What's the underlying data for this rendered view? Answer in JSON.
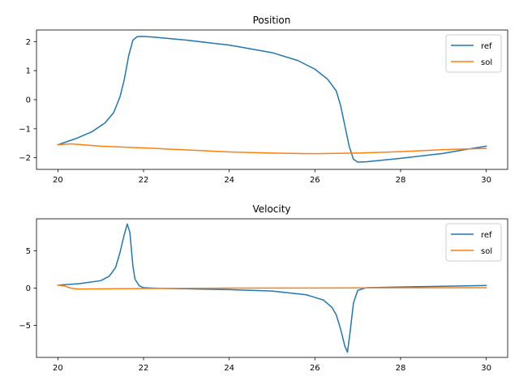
{
  "chart_data": [
    {
      "type": "line",
      "title": "Position",
      "xlabel": "",
      "ylabel": "",
      "xlim": [
        19.5,
        30.5
      ],
      "ylim": [
        -2.4,
        2.4
      ],
      "xticks": [
        20,
        22,
        24,
        26,
        28,
        30
      ],
      "yticks": [
        -2,
        -1,
        0,
        1,
        2
      ],
      "xtick_labels": [
        "20",
        "22",
        "24",
        "26",
        "28",
        "30"
      ],
      "ytick_labels": [
        "−2",
        "−1",
        "0",
        "1",
        "2"
      ],
      "legend": {
        "position": "top-right",
        "entries": [
          "ref",
          "sol"
        ]
      },
      "series": [
        {
          "name": "ref",
          "color": "#1f77b4",
          "x": [
            20,
            20.4,
            20.8,
            21.1,
            21.3,
            21.45,
            21.55,
            21.65,
            21.75,
            21.85,
            21.95,
            22.2,
            23,
            24,
            25,
            25.6,
            26,
            26.3,
            26.5,
            26.6,
            26.7,
            26.8,
            26.9,
            27.0,
            27.2,
            28,
            29,
            29.5,
            30
          ],
          "y": [
            -1.55,
            -1.35,
            -1.1,
            -0.8,
            -0.45,
            0.1,
            0.7,
            1.5,
            2.05,
            2.17,
            2.18,
            2.16,
            2.05,
            1.88,
            1.62,
            1.35,
            1.05,
            0.7,
            0.3,
            -0.2,
            -0.9,
            -1.6,
            -2.05,
            -2.15,
            -2.14,
            -2.02,
            -1.85,
            -1.72,
            -1.6
          ]
        },
        {
          "name": "sol",
          "color": "#ff7f0e",
          "x": [
            20,
            20.3,
            21,
            22,
            23,
            24,
            25,
            26,
            27,
            28,
            29,
            30
          ],
          "y": [
            -1.55,
            -1.52,
            -1.6,
            -1.66,
            -1.73,
            -1.8,
            -1.84,
            -1.86,
            -1.84,
            -1.79,
            -1.72,
            -1.68
          ]
        }
      ]
    },
    {
      "type": "line",
      "title": "Velocity",
      "xlabel": "",
      "ylabel": "",
      "xlim": [
        19.5,
        30.5
      ],
      "ylim": [
        -9.3,
        9.3
      ],
      "xticks": [
        20,
        22,
        24,
        26,
        28,
        30
      ],
      "yticks": [
        -5,
        0,
        5
      ],
      "xtick_labels": [
        "20",
        "22",
        "24",
        "26",
        "28",
        "30"
      ],
      "ytick_labels": [
        "−5",
        "0",
        "5"
      ],
      "legend": {
        "position": "top-right",
        "entries": [
          "ref",
          "sol"
        ]
      },
      "series": [
        {
          "name": "ref",
          "color": "#1f77b4",
          "x": [
            20,
            20.5,
            21,
            21.2,
            21.35,
            21.45,
            21.55,
            21.62,
            21.68,
            21.75,
            21.8,
            21.9,
            22.0,
            22.2,
            23,
            24,
            25,
            25.8,
            26.2,
            26.4,
            26.5,
            26.6,
            26.7,
            26.76,
            26.82,
            26.9,
            27.0,
            27.2,
            28,
            29,
            30
          ],
          "y": [
            0.4,
            0.6,
            1.0,
            1.6,
            2.8,
            4.8,
            7.2,
            8.6,
            7.5,
            3.0,
            1.2,
            0.3,
            0.05,
            0.0,
            -0.1,
            -0.2,
            -0.4,
            -0.9,
            -1.6,
            -2.6,
            -3.6,
            -5.5,
            -7.8,
            -8.6,
            -6.0,
            -2.0,
            -0.3,
            0.05,
            0.15,
            0.25,
            0.35
          ]
        },
        {
          "name": "sol",
          "color": "#ff7f0e",
          "x": [
            20,
            20.15,
            20.3,
            20.45,
            21,
            22,
            24,
            26,
            28,
            30
          ],
          "y": [
            0.4,
            0.3,
            0.0,
            -0.12,
            -0.1,
            -0.05,
            0.0,
            0.02,
            0.04,
            0.05
          ]
        }
      ]
    }
  ]
}
